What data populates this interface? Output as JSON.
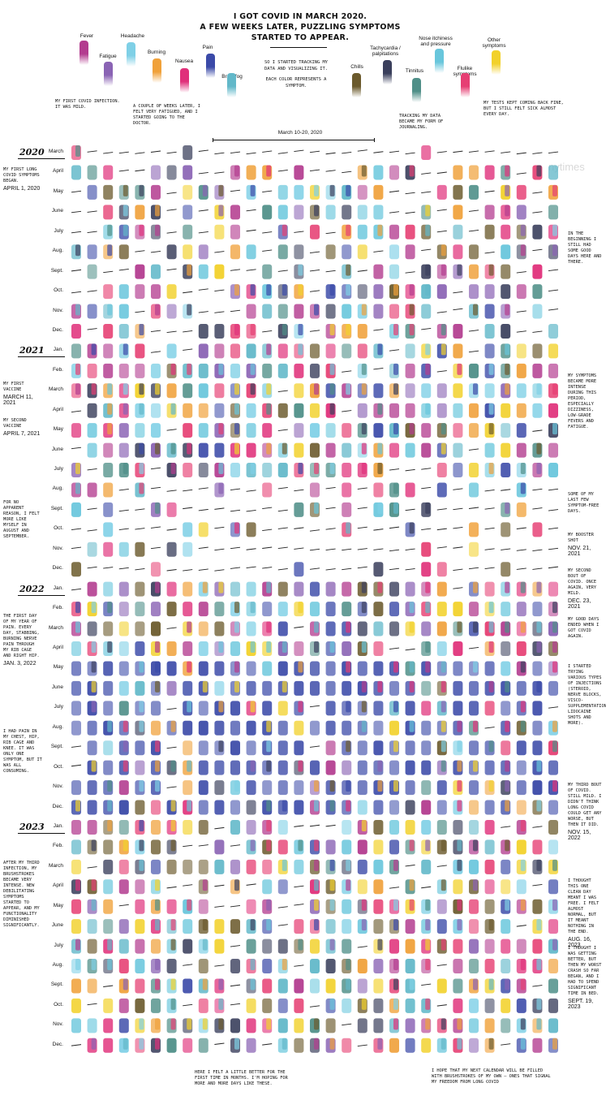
{
  "title_lines": [
    "I got Covid in March 2020.",
    "A few weeks later, puzzling symptoms",
    "started to appear."
  ],
  "method_lines": [
    "So I started tracking my",
    "data and visualizing it.",
    "",
    "Each color represents a",
    "symptom."
  ],
  "watermark": "nytimes",
  "legend": [
    {
      "name": "Fever",
      "color": "#b33c8f"
    },
    {
      "name": "Fatigue",
      "color": "#8a63b4"
    },
    {
      "name": "Headache",
      "color": "#7fd0e6"
    },
    {
      "name": "Burning",
      "color": "#f0a13a"
    },
    {
      "name": "Nausea",
      "color": "#e0307a"
    },
    {
      "name": "Pain",
      "color": "#3b4aa8"
    },
    {
      "name": "Brain fog",
      "color": "#62b8c9"
    },
    {
      "name": "Chills",
      "color": "#6b5a2c"
    },
    {
      "name": "Tachycardia / palpitations",
      "color": "#3a3f5c"
    },
    {
      "name": "Tinnitus",
      "color": "#4f8f88"
    },
    {
      "name": "Nose itchiness and pressure",
      "color": "#68c6dc"
    },
    {
      "name": "Flulike symptoms",
      "color": "#e63f73"
    },
    {
      "name": "Other symptoms",
      "color": "#f2d12b"
    }
  ],
  "chart_data": {
    "type": "heatmap",
    "description_of_cells": "Each cell is one day; colored brushstrokes mark symptoms, a black dash marks a symptom-free day.",
    "highlight_range": {
      "label": "March 10-20, 2020",
      "start": "2020-03-10",
      "end": "2020-03-20"
    },
    "years": [
      {
        "year": "2020",
        "months": [
          "March",
          "April",
          "May",
          "June",
          "July",
          "Aug.",
          "Sept.",
          "Oct.",
          "Nov.",
          "Dec."
        ]
      },
      {
        "year": "2021",
        "months": [
          "Jan.",
          "Feb.",
          "March",
          "April",
          "May",
          "June",
          "July",
          "Aug.",
          "Sept.",
          "Oct.",
          "Nov.",
          "Dec."
        ]
      },
      {
        "year": "2022",
        "months": [
          "Jan.",
          "Feb.",
          "March",
          "April",
          "May",
          "June",
          "July",
          "Aug.",
          "Sept.",
          "Oct.",
          "Nov.",
          "Dec."
        ]
      },
      {
        "year": "2023",
        "months": [
          "Jan.",
          "Feb.",
          "March",
          "April",
          "May",
          "June",
          "July",
          "Aug.",
          "Sept.",
          "Oct.",
          "Nov.",
          "Dec."
        ]
      }
    ],
    "symptom_intensity_by_period": [
      {
        "period": "2020-03",
        "level": 0.15
      },
      {
        "period": "2020-04 to 2020-12",
        "level": 0.7
      },
      {
        "period": "2021-01 to 2021-07",
        "level": 0.9
      },
      {
        "period": "2021-08 to 2021-12",
        "level": 0.3
      },
      {
        "period": "2022-01 to 2022-12",
        "level": 0.95
      },
      {
        "period": "2023-01 to 2023-12",
        "level": 0.85
      }
    ]
  },
  "annotations": [
    {
      "text": "My first Covid infection. It was mild."
    },
    {
      "text": "A couple of weeks later, I felt very fatigued, and I started going to the doctor."
    },
    {
      "text": "Tracking my data became my form of journaling."
    },
    {
      "text": "My tests kept coming back fine, but I still felt sick almost every day."
    },
    {
      "text": "My first long Covid symptoms began.",
      "date": "April 1, 2020"
    },
    {
      "text": "In the beginning I still had some good days here and there."
    },
    {
      "text": "My first vaccine",
      "date": "March 11, 2021"
    },
    {
      "text": "My second vaccine",
      "date": "April 7, 2021"
    },
    {
      "text": "My symptoms became more intense during this period, especially dizziness, low-grade fevers and fatigue."
    },
    {
      "text": "For no apparent reason, I felt more like myself in August and September."
    },
    {
      "text": "Some of my last few symptom-free days."
    },
    {
      "text": "My booster shot",
      "date": "Nov. 21, 2021"
    },
    {
      "text": "My second bout of Covid. Once again, very mild.",
      "date": "Dec. 23, 2021"
    },
    {
      "text": "My good days ended when I got Covid again."
    },
    {
      "text": "The first day of my year of pain. Every day, stabbing, burning nerve pain through my rib cage and right hip.",
      "date": "Jan. 3, 2022"
    },
    {
      "text": "I started trying various types of injections (steroid, nerve blocks, visco-supplementations, lidocaine shots and more)."
    },
    {
      "text": "I had pain in my chest, hip, rib cage and knee. It was only one symptom, but it was all consuming."
    },
    {
      "text": "My third bout of Covid. Still mild. I didn't think long Covid could get any worse, but then it did.",
      "date": "Nov. 15, 2022"
    },
    {
      "text": "After my third infection, my brushstrokes became very intense. New debilitating symptoms started to appear, and my functionality diminished significantly."
    },
    {
      "text": "I thought this one clean day meant I was free. I felt almost normal, but it meant nothing in the end.",
      "date": "Aug. 16, 2023"
    },
    {
      "text": "I thought I was getting better, but then my worst crash so far began, and I had to spend significant time in bed.",
      "date": "Sept. 19, 2023"
    },
    {
      "text": "Here I felt a little better for the first time in months. I'm hoping for more and more days like these."
    },
    {
      "text": "I hope that my next calendar will be filled with brushstrokes of my own — ones that signal my freedom from long Covid"
    }
  ]
}
